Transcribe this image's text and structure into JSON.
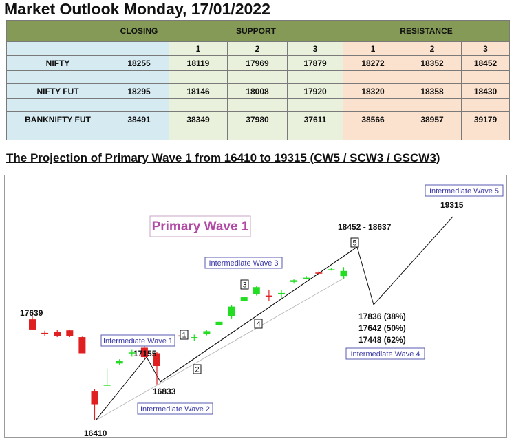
{
  "title": "Market Outlook Monday, 17/01/2022",
  "table": {
    "headers": {
      "closing": "CLOSING",
      "support": "SUPPORT",
      "resistance": "RESISTANCE"
    },
    "levels": [
      "1",
      "2",
      "3"
    ],
    "rows": [
      {
        "name": "NIFTY",
        "closing": "18255",
        "support": [
          "18119",
          "17969",
          "17879"
        ],
        "resistance": [
          "18272",
          "18352",
          "18452"
        ]
      },
      {
        "name": "NIFTY FUT",
        "closing": "18295",
        "support": [
          "18146",
          "18008",
          "17920"
        ],
        "resistance": [
          "18320",
          "18358",
          "18430"
        ]
      },
      {
        "name": "BANKNIFTY FUT",
        "closing": "38491",
        "support": [
          "38349",
          "37980",
          "37611"
        ],
        "resistance": [
          "38566",
          "38957",
          "39179"
        ]
      }
    ]
  },
  "wave_title": "The Projection of Primary Wave 1 from 16410 to 19315 (CW5 / SCW3 / GSCW3)",
  "chart_data": {
    "type": "candlestick",
    "title": "Primary Wave 1",
    "colors": {
      "up": "#22dd22",
      "down": "#e02020",
      "title": "#b04aa4",
      "box_text": "#3c3aa6"
    },
    "candles": [
      {
        "o": 17600,
        "h": 17639,
        "l": 17480,
        "c": 17480
      },
      {
        "o": 17440,
        "h": 17465,
        "l": 17405,
        "c": 17435
      },
      {
        "o": 17450,
        "h": 17475,
        "l": 17390,
        "c": 17405
      },
      {
        "o": 17470,
        "h": 17480,
        "l": 17390,
        "c": 17400
      },
      {
        "o": 17390,
        "h": 17395,
        "l": 17200,
        "c": 17200
      },
      {
        "o": 16750,
        "h": 16780,
        "l": 16410,
        "c": 16600
      },
      {
        "o": 16830,
        "h": 17020,
        "l": 16830,
        "c": 16830
      },
      {
        "o": 17080,
        "h": 17130,
        "l": 17060,
        "c": 17115
      },
      {
        "o": 17200,
        "h": 17240,
        "l": 17160,
        "c": 17210
      },
      {
        "o": 17265,
        "h": 17300,
        "l": 17130,
        "c": 17155
      },
      {
        "o": 17200,
        "h": 17220,
        "l": 16833,
        "c": 17050
      },
      {
        "o": 17365,
        "h": 17390,
        "l": 17330,
        "c": 17385
      },
      {
        "o": 17410,
        "h": 17440,
        "l": 17370,
        "c": 17405
      },
      {
        "o": 17380,
        "h": 17420,
        "l": 17350,
        "c": 17390
      },
      {
        "o": 17425,
        "h": 17470,
        "l": 17410,
        "c": 17460
      },
      {
        "o": 17530,
        "h": 17580,
        "l": 17520,
        "c": 17570
      },
      {
        "o": 17640,
        "h": 17770,
        "l": 17610,
        "c": 17750
      },
      {
        "o": 17820,
        "h": 17870,
        "l": 17810,
        "c": 17860
      },
      {
        "o": 17900,
        "h": 17990,
        "l": 17880,
        "c": 17980
      },
      {
        "o": 17880,
        "h": 17950,
        "l": 17820,
        "c": 17870
      },
      {
        "o": 17900,
        "h": 17945,
        "l": 17850,
        "c": 17910
      },
      {
        "o": 18040,
        "h": 18070,
        "l": 18020,
        "c": 18060
      },
      {
        "o": 18080,
        "h": 18110,
        "l": 18070,
        "c": 18090
      },
      {
        "o": 18150,
        "h": 18165,
        "l": 18125,
        "c": 18140
      },
      {
        "o": 18180,
        "h": 18200,
        "l": 18175,
        "c": 18190
      },
      {
        "o": 18110,
        "h": 18215,
        "l": 18080,
        "c": 18170
      }
    ],
    "wave_labels": [
      "1",
      "2",
      "3",
      "4",
      "5"
    ],
    "price_labels": [
      "17639",
      "17155",
      "16833",
      "16410",
      "18452 - 18637",
      "19315",
      "17836 (38%)",
      "17642 (50%)",
      "17448 (62%)"
    ],
    "wave_boxes": [
      "Intermediate Wave 1",
      "Intermediate Wave 2",
      "Intermediate Wave 3",
      "Intermediate Wave 4",
      "Intermediate Wave 5"
    ]
  }
}
